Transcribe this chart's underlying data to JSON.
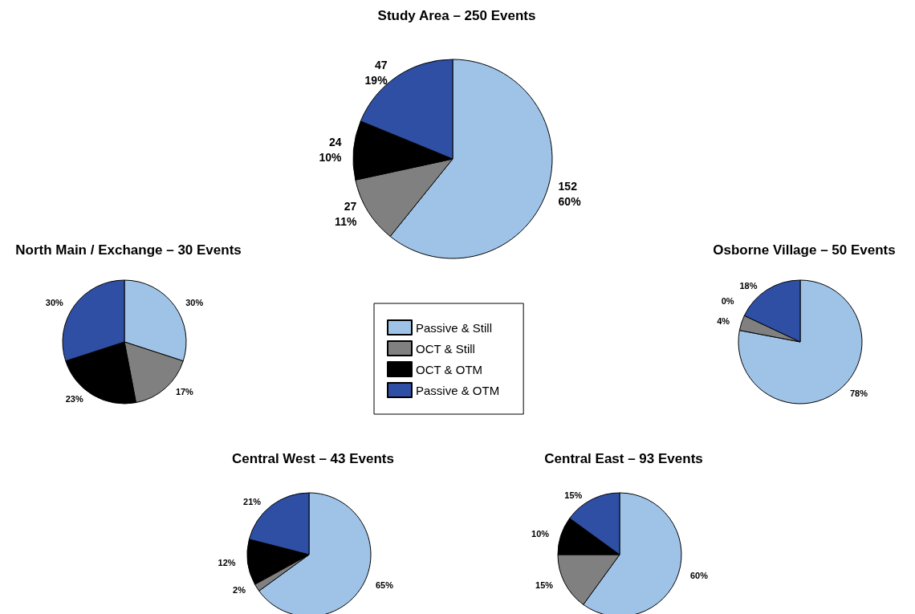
{
  "chart_data": [
    {
      "type": "pie",
      "title": "Study Area – 250 Events",
      "categories": [
        "Passive & Still",
        "OCT & Still",
        "OCT & OTM",
        "Passive & OTM"
      ],
      "values": [
        152,
        27,
        24,
        47
      ],
      "value_labels": [
        "152\n60%",
        "27\n11%",
        "24\n10%",
        "47\n19%"
      ],
      "colors": [
        "#9fc3e7",
        "#808080",
        "#000000",
        "#2e4fa3"
      ],
      "legend": "bottom"
    },
    {
      "type": "pie",
      "title": "North Main / Exchange – 30 Events",
      "categories": [
        null,
        null,
        null,
        null
      ],
      "values": [
        30,
        17,
        23,
        30
      ],
      "value_labels": [
        "30%",
        "17%",
        "23%",
        "30%"
      ],
      "colors": [
        "#9fc3e7",
        "#808080",
        "#000000",
        "#2e4fa3"
      ]
    },
    {
      "type": "pie",
      "title": "Osborne Village – 50 Events",
      "categories": [
        null,
        null,
        null,
        null
      ],
      "values": [
        78,
        4,
        0,
        18
      ],
      "value_labels": [
        "78%",
        "4%",
        "0%",
        "18%"
      ],
      "colors": [
        "#9fc3e7",
        "#808080",
        "#000000",
        "#2e4fa3"
      ]
    },
    {
      "type": "pie",
      "title": "Central West – 43 Events",
      "categories": [
        null,
        null,
        null,
        null
      ],
      "values": [
        65,
        2,
        12,
        21
      ],
      "value_labels": [
        "65%",
        "2%",
        "12%",
        "21%"
      ],
      "colors": [
        "#9fc3e7",
        "#808080",
        "#000000",
        "#2e4fa3"
      ]
    },
    {
      "type": "pie",
      "title": "Central East – 93 Events",
      "categories": [
        null,
        null,
        null,
        null
      ],
      "values": [
        60,
        15,
        10,
        15
      ],
      "value_labels": [
        "60%",
        "15%",
        "10%",
        "15%"
      ],
      "colors": [
        "#9fc3e7",
        "#808080",
        "#000000",
        "#2e4fa3"
      ]
    }
  ]
}
